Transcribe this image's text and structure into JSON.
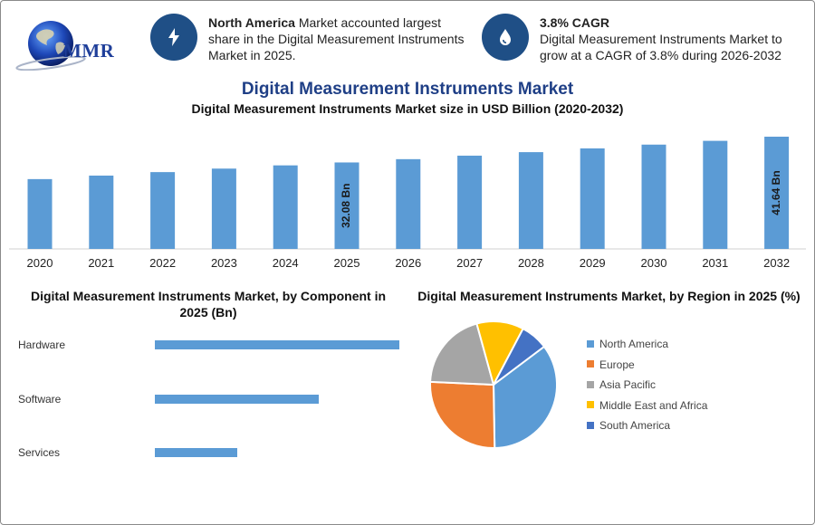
{
  "brand": {
    "logo_text": "MMR"
  },
  "highlights": [
    {
      "bold": "North America",
      "text": " Market accounted largest share in the Digital Measurement Instruments Market in 2025.",
      "icon": "lightning-icon"
    },
    {
      "bold": "3.8% CAGR",
      "text": "Digital Measurement Instruments Market to grow at a CAGR of 3.8% during 2026-2032",
      "icon": "water-drop-icon"
    }
  ],
  "titles": {
    "main": "Digital Measurement Instruments Market",
    "sub": "Digital Measurement Instruments Market size in USD Billion (2020-2032)",
    "component": "Digital Measurement Instruments Market, by Component in 2025 (Bn)",
    "region": "Digital Measurement Instruments Market, by Region in 2025 (%)"
  },
  "colors": {
    "bar": "#5b9bd5",
    "icon_bg": "#1f4f86",
    "title": "#1f3f86"
  },
  "chart_data": [
    {
      "type": "bar",
      "title": "Digital Measurement Instruments Market size in USD Billion (2020-2032)",
      "categories": [
        "2020",
        "2021",
        "2022",
        "2023",
        "2024",
        "2025",
        "2026",
        "2027",
        "2028",
        "2029",
        "2030",
        "2031",
        "2032"
      ],
      "values": [
        25.9,
        27.2,
        28.5,
        29.8,
        31.0,
        32.08,
        33.3,
        34.6,
        35.9,
        37.3,
        38.7,
        40.1,
        41.64
      ],
      "data_labels": [
        null,
        null,
        null,
        null,
        null,
        "32.08 Bn",
        null,
        null,
        null,
        null,
        null,
        null,
        "41.64 Bn"
      ],
      "ylim": [
        0,
        45
      ],
      "grid": false
    },
    {
      "type": "bar",
      "orientation": "horizontal",
      "title": "Digital Measurement Instruments Market, by Component in 2025 (Bn)",
      "categories": [
        "Hardware",
        "Software",
        "Services"
      ],
      "values": [
        16.0,
        10.7,
        5.38
      ],
      "xlim": [
        0,
        16
      ]
    },
    {
      "type": "pie",
      "title": "Digital Measurement Instruments Market, by Region in 2025 (%)",
      "labels": [
        "North America",
        "Europe",
        "Asia Pacific",
        "Middle East and Africa",
        "South America"
      ],
      "values": [
        35,
        26,
        20,
        12,
        7
      ],
      "colors": [
        "#5b9bd5",
        "#ed7d31",
        "#a5a5a5",
        "#ffc000",
        "#4472c4"
      ],
      "legend": "right"
    }
  ]
}
